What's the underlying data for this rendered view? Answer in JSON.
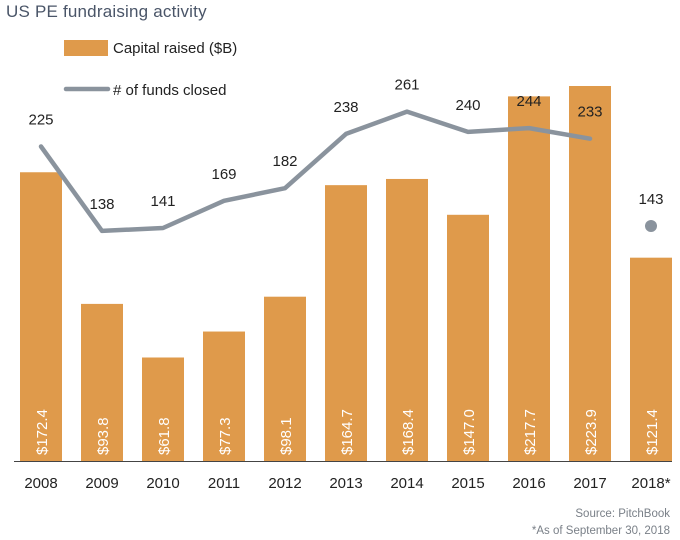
{
  "chart_data": {
    "type": "bar",
    "title": "US PE fundraising activity",
    "categories": [
      "2008",
      "2009",
      "2010",
      "2011",
      "2012",
      "2013",
      "2014",
      "2015",
      "2016",
      "2017",
      "2018*"
    ],
    "series": [
      {
        "name": "Capital raised ($B)",
        "kind": "bar",
        "color": "#DF9A4B",
        "values": [
          172.4,
          93.8,
          61.8,
          77.3,
          98.1,
          164.7,
          168.4,
          147.0,
          217.7,
          223.9,
          121.4
        ],
        "labels": [
          "$172.4",
          "$93.8",
          "$61.8",
          "$77.3",
          "$98.1",
          "$164.7",
          "$168.4",
          "$147.0",
          "$217.7",
          "$223.9",
          "$121.4"
        ]
      },
      {
        "name": "# of funds closed",
        "kind": "line",
        "color": "#8A939D",
        "values": [
          225,
          138,
          141,
          169,
          182,
          238,
          261,
          240,
          244,
          233,
          143
        ],
        "labels": [
          "225",
          "138",
          "141",
          "169",
          "182",
          "238",
          "261",
          "240",
          "244",
          "233",
          "143"
        ],
        "last_point_marker_only": true
      }
    ],
    "legend_position": "top-left",
    "grid": false
  },
  "source": "Source: PitchBook",
  "footnote": "*As of September 30, 2018"
}
